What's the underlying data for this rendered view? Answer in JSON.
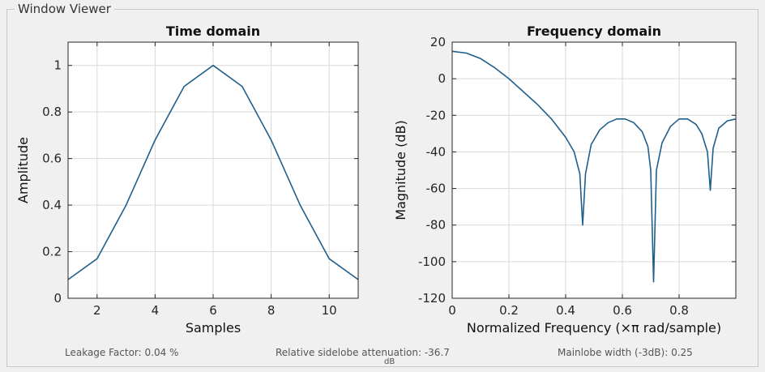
{
  "panel_title": "Window Viewer",
  "chart_data": [
    {
      "type": "line",
      "title": "Time domain",
      "xlabel": "Samples",
      "ylabel": "Amplitude",
      "xlim": [
        1,
        11
      ],
      "ylim": [
        0,
        1.1
      ],
      "xticks": [
        2,
        4,
        6,
        8,
        10
      ],
      "yticks": [
        0,
        0.2,
        0.4,
        0.6,
        0.8,
        1
      ],
      "grid": true,
      "series": [
        {
          "x": [
            1,
            2,
            3,
            4,
            5,
            6,
            7,
            8,
            9,
            10,
            11
          ],
          "y": [
            0.08,
            0.17,
            0.4,
            0.68,
            0.91,
            1.0,
            0.91,
            0.68,
            0.4,
            0.17,
            0.08
          ]
        }
      ]
    },
    {
      "type": "line",
      "title": "Frequency domain",
      "xlabel": "Normalized Frequency  (×π rad/sample)",
      "ylabel": "Magnitude (dB)",
      "xlim": [
        0,
        1
      ],
      "ylim": [
        -120,
        20
      ],
      "xticks": [
        0,
        0.2,
        0.4,
        0.6,
        0.8
      ],
      "yticks": [
        -120,
        -100,
        -80,
        -60,
        -40,
        -20,
        0,
        20
      ],
      "grid": true,
      "series": [
        {
          "x": [
            0,
            0.05,
            0.1,
            0.15,
            0.2,
            0.25,
            0.3,
            0.35,
            0.4,
            0.43,
            0.45,
            0.46,
            0.47,
            0.49,
            0.52,
            0.55,
            0.58,
            0.61,
            0.64,
            0.67,
            0.69,
            0.7,
            0.71,
            0.72,
            0.74,
            0.77,
            0.8,
            0.83,
            0.86,
            0.88,
            0.9,
            0.91,
            0.92,
            0.94,
            0.97,
            1.0
          ],
          "y": [
            15,
            14,
            11,
            6,
            0,
            -7,
            -14,
            -22,
            -32,
            -40,
            -52,
            -80,
            -52,
            -36,
            -28,
            -24,
            -22,
            -22,
            -24,
            -29,
            -37,
            -50,
            -111,
            -50,
            -35,
            -26,
            -22,
            -22,
            -25,
            -30,
            -40,
            -61,
            -38,
            -27,
            -23,
            -22
          ]
        }
      ]
    }
  ],
  "footer": {
    "leakage": "Leakage Factor: 0.04 %",
    "sidelobe": "Relative sidelobe attenuation: -36.7",
    "sidelobe_unit": "dB",
    "mainlobe": "Mainlobe width (-3dB): 0.25"
  },
  "colors": {
    "line": "#1f5f8b",
    "grid": "#d9d9d9",
    "axes_bg": "#ffffff"
  }
}
